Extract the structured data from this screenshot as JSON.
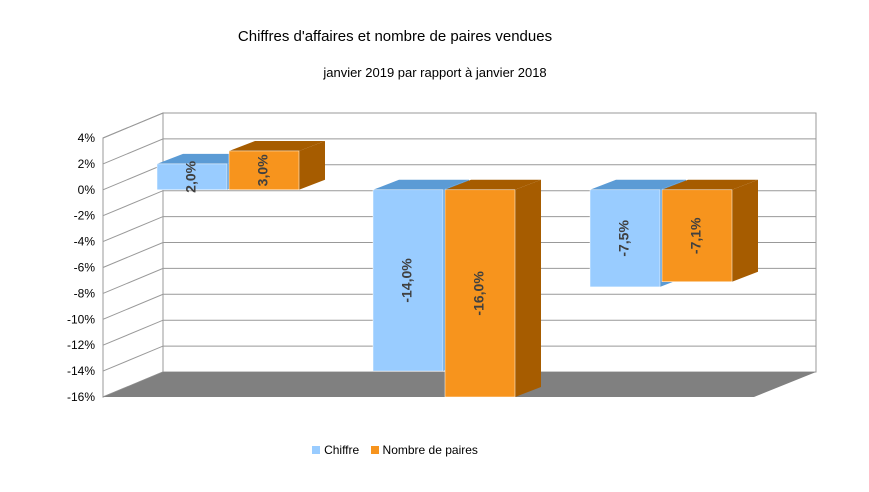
{
  "chart_data": {
    "type": "bar",
    "title": "Chiffres d'affaires et nombre de paires vendues",
    "subtitle": "janvier 2019 par rapport à janvier 2018",
    "categories": [
      "",
      "",
      ""
    ],
    "series": [
      {
        "name": "Chiffre",
        "values": [
          2.0,
          -14.0,
          -7.5
        ],
        "labels": [
          "2,0%",
          "-14,0%",
          "-7,5%"
        ]
      },
      {
        "name": "Nombre de paires",
        "values": [
          3.0,
          -16.0,
          -7.1
        ],
        "labels": [
          "3,0%",
          "-16,0%",
          "-7,1%"
        ]
      }
    ],
    "ylim": [
      -16,
      4
    ],
    "yticks": [
      4,
      2,
      0,
      -2,
      -4,
      -6,
      -8,
      -10,
      -12,
      -14,
      -16
    ],
    "ytick_labels": [
      "4%",
      "2%",
      "0%",
      "-2%",
      "-4%",
      "-6%",
      "-8%",
      "-10%",
      "-12%",
      "-14%",
      "-16%"
    ],
    "grid": true,
    "three_d": true,
    "legend_position": "bottom",
    "colors": {
      "chiffre_front": "#99ccff",
      "chiffre_side": "#5b9bd5",
      "paires_front": "#f7941d",
      "paires_side": "#a65c00",
      "floor": "#808080",
      "grid": "#999999"
    }
  }
}
